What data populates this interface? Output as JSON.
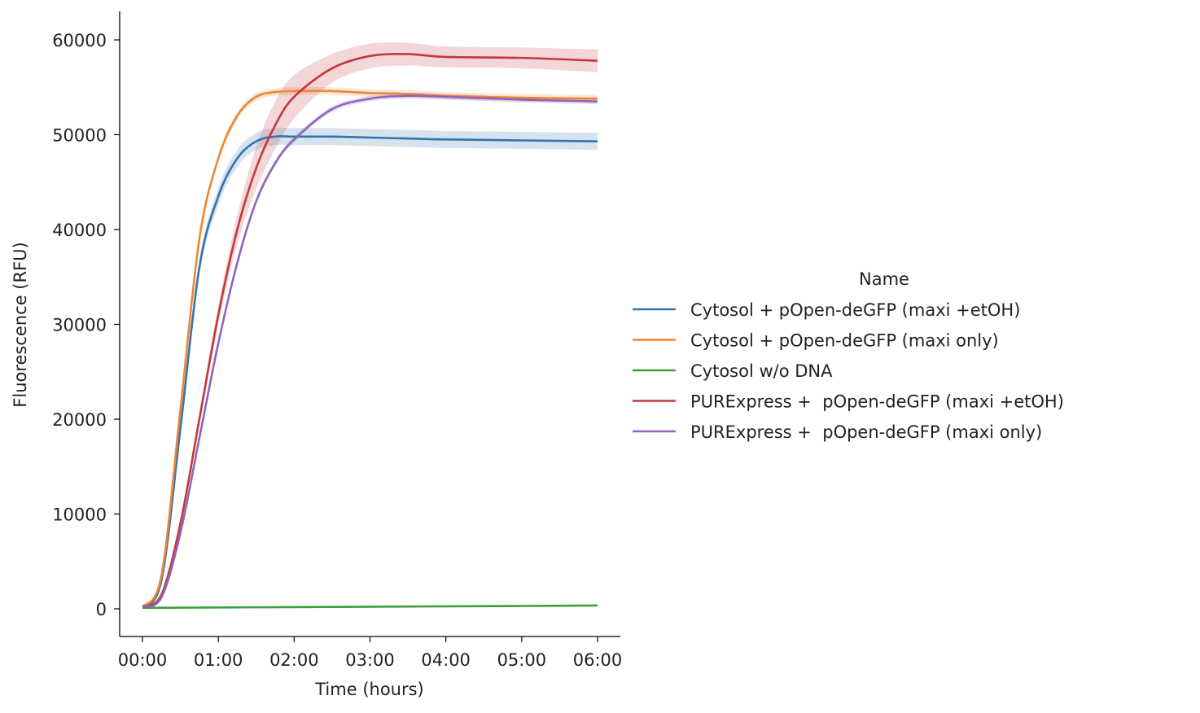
{
  "chart_data": {
    "type": "line",
    "xlabel": "Time (hours)",
    "ylabel": "Fluorescence (RFU)",
    "xlim": [
      0,
      6
    ],
    "ylim": [
      0,
      60000
    ],
    "x_ticks": [
      "00:00",
      "01:00",
      "02:00",
      "03:00",
      "04:00",
      "05:00",
      "06:00"
    ],
    "y_ticks": [
      0,
      10000,
      20000,
      30000,
      40000,
      50000,
      60000
    ],
    "grid": false,
    "legend": {
      "title": "Name",
      "placement": "right"
    },
    "x": [
      0,
      0.25,
      0.5,
      0.75,
      1,
      1.25,
      1.5,
      1.75,
      2,
      2.5,
      3,
      3.5,
      4,
      5,
      6
    ],
    "series": [
      {
        "name": "Cytosol + pOpen-deGFP (maxi +etOH)",
        "color": "#3274b0",
        "values": [
          200,
          3000,
          19000,
          36000,
          43500,
          47500,
          49300,
          49800,
          49800,
          49800,
          49700,
          49600,
          49500,
          49400,
          49300
        ],
        "ci": [
          100,
          300,
          600,
          800,
          900,
          900,
          900,
          900,
          900,
          900,
          900,
          900,
          900,
          900,
          900
        ]
      },
      {
        "name": "Cytosol + pOpen-deGFP (maxi only)",
        "color": "#ef8532",
        "values": [
          200,
          3500,
          21000,
          39000,
          47500,
          52000,
          54000,
          54500,
          54600,
          54600,
          54400,
          54300,
          54100,
          53900,
          53800
        ],
        "ci": [
          100,
          200,
          300,
          400,
          400,
          400,
          400,
          400,
          400,
          400,
          400,
          400,
          400,
          400,
          400
        ]
      },
      {
        "name": "Cytosol w/o DNA",
        "color": "#3c9e3a",
        "values": [
          100,
          110,
          120,
          130,
          140,
          150,
          160,
          170,
          180,
          200,
          220,
          240,
          260,
          300,
          350
        ],
        "ci": [
          0,
          0,
          0,
          0,
          0,
          0,
          0,
          0,
          0,
          0,
          0,
          0,
          0,
          0,
          0
        ]
      },
      {
        "name": "PURExpress +  pOpen-deGFP (maxi +etOH)",
        "color": "#c5383a",
        "values": [
          200,
          1500,
          9000,
          20000,
          31000,
          40000,
          46500,
          51000,
          54000,
          57000,
          58300,
          58500,
          58200,
          58100,
          57800
        ],
        "ci": [
          100,
          200,
          400,
          700,
          1000,
          1500,
          2200,
          2500,
          2300,
          1500,
          1300,
          1200,
          1100,
          1100,
          1200
        ]
      },
      {
        "name": "PURExpress +  pOpen-deGFP (maxi only)",
        "color": "#8d65bd",
        "values": [
          200,
          1200,
          8000,
          18000,
          28000,
          36500,
          43000,
          47000,
          49500,
          52700,
          53800,
          54100,
          54000,
          53700,
          53500
        ],
        "ci": [
          100,
          150,
          200,
          300,
          300,
          300,
          300,
          300,
          300,
          300,
          300,
          300,
          300,
          300,
          300
        ]
      }
    ]
  }
}
